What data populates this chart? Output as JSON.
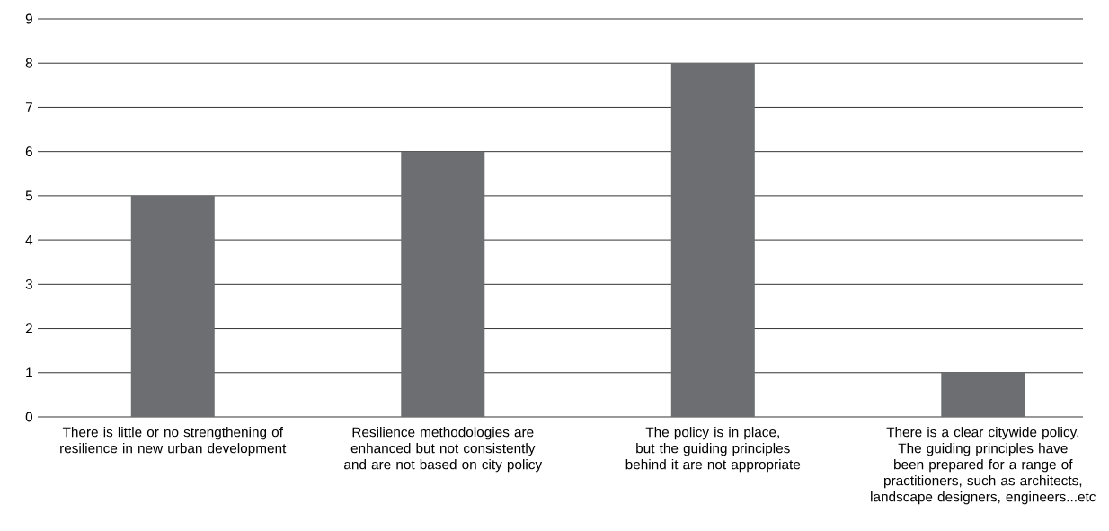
{
  "chart_data": {
    "type": "bar",
    "categories": [
      "There is little or no strengthening of resilience in new urban development",
      "Resilience methodologies are enhanced but not consistently and are not based on city policy",
      "The policy is in place, but the guiding principles behind it are not appropriate",
      "There is a clear citywide policy. The guiding principles have been prepared for a range of practitioners, such as architects, landscape designers, engineers...etc"
    ],
    "values": [
      5,
      6,
      8,
      1
    ],
    "color": "#6d6e71",
    "ylim": [
      0,
      9
    ],
    "yticks": [
      0,
      1,
      2,
      3,
      4,
      5,
      6,
      7,
      8,
      9
    ],
    "grid": "y"
  }
}
